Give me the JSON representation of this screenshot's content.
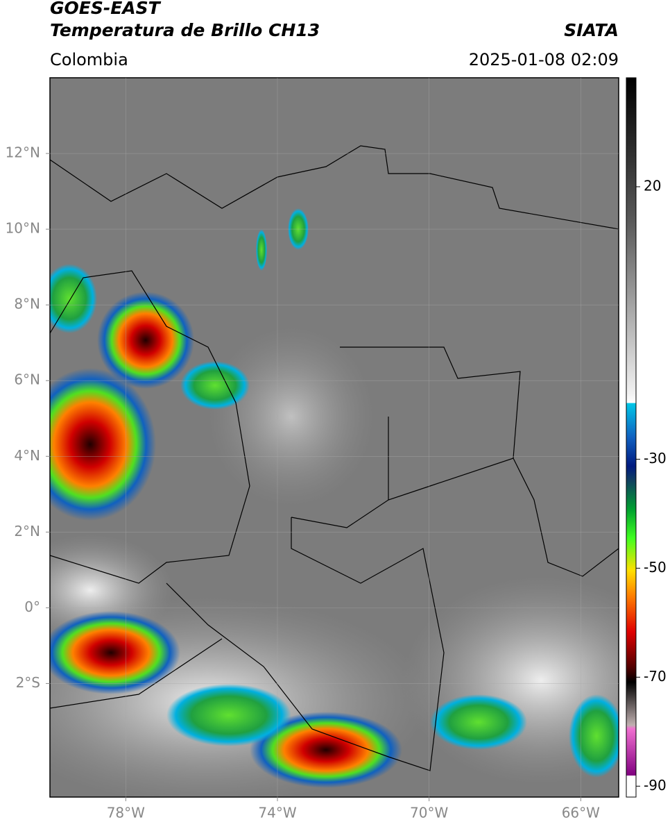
{
  "header": {
    "title": "GOES-EAST",
    "subtitle": "Temperatura de Brillo CH13",
    "source": "SIATA",
    "region": "Colombia",
    "timestamp": "2025-01-08 02:09"
  },
  "map": {
    "xlim": [
      -80,
      -65
    ],
    "ylim": [
      -5,
      14
    ],
    "xticks": [
      {
        "value": -78,
        "label": "78°W"
      },
      {
        "value": -74,
        "label": "74°W"
      },
      {
        "value": -70,
        "label": "70°W"
      },
      {
        "value": -66,
        "label": "66°W"
      }
    ],
    "yticks": [
      {
        "value": 12,
        "label": "12°N"
      },
      {
        "value": 10,
        "label": "10°N"
      },
      {
        "value": 8,
        "label": "8°N"
      },
      {
        "value": 6,
        "label": "6°N"
      },
      {
        "value": 4,
        "label": "4°N"
      },
      {
        "value": 2,
        "label": "2°N"
      },
      {
        "value": 0,
        "label": "0°"
      },
      {
        "value": -2,
        "label": "2°S"
      }
    ],
    "grid": true
  },
  "colorbar": {
    "lim": [
      -92,
      40
    ],
    "ticks": [
      20,
      -30,
      -50,
      -70,
      -90
    ]
  }
}
